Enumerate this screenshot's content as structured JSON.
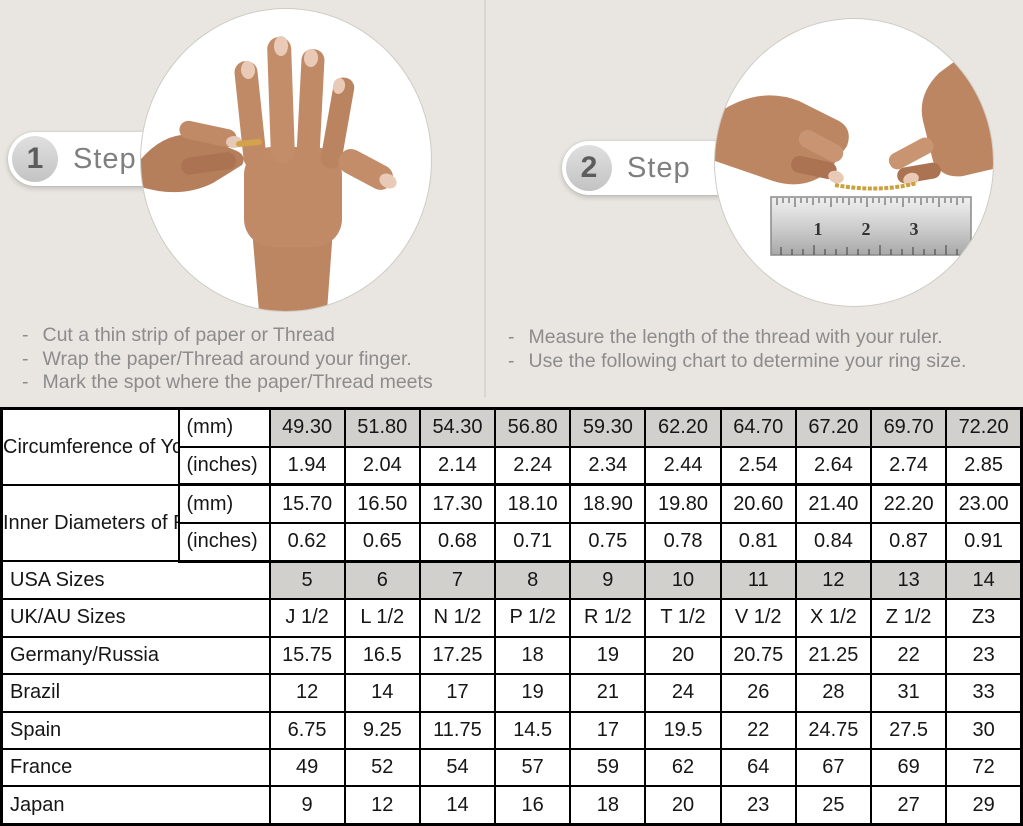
{
  "page": {
    "background": "#e9e6e1",
    "divider_color": "#d9d6d0"
  },
  "steps": [
    {
      "number": "1",
      "label": "Step",
      "image": "hand-with-thread-wrapped-around-ring-finger",
      "instructions": [
        "Cut a thin strip of paper or Thread",
        "Wrap the paper/Thread around your finger.",
        "Mark the spot where the paper/Thread meets"
      ]
    },
    {
      "number": "2",
      "label": "Step",
      "image": "hands-measuring-gold-thread-with-ruler",
      "instructions": [
        "Measure the length of the thread with your ruler.",
        "Use the following chart to determine your ring size."
      ]
    }
  ],
  "ruler_numbers": [
    "1",
    "2",
    "3"
  ],
  "size_chart": {
    "shaded_cell_color": "#d2d0cd",
    "measure_groups": [
      {
        "label": "Circumference of Your Finger",
        "rows": [
          {
            "unit": "(mm)",
            "shaded": true,
            "values": [
              "49.30",
              "51.80",
              "54.30",
              "56.80",
              "59.30",
              "62.20",
              "64.70",
              "67.20",
              "69.70",
              "72.20"
            ]
          },
          {
            "unit": "(inches)",
            "shaded": false,
            "values": [
              "1.94",
              "2.04",
              "2.14",
              "2.24",
              "2.34",
              "2.44",
              "2.54",
              "2.64",
              "2.74",
              "2.85"
            ]
          }
        ]
      },
      {
        "label": "Inner Diameters of Rings",
        "rows": [
          {
            "unit": "(mm)",
            "shaded": false,
            "values": [
              "15.70",
              "16.50",
              "17.30",
              "18.10",
              "18.90",
              "19.80",
              "20.60",
              "21.40",
              "22.20",
              "23.00"
            ]
          },
          {
            "unit": "(inches)",
            "shaded": false,
            "values": [
              "0.62",
              "0.65",
              "0.68",
              "0.71",
              "0.75",
              "0.78",
              "0.81",
              "0.84",
              "0.87",
              "0.91"
            ]
          }
        ]
      }
    ],
    "size_rows": [
      {
        "label": "USA Sizes",
        "shaded": true,
        "values": [
          "5",
          "6",
          "7",
          "8",
          "9",
          "10",
          "11",
          "12",
          "13",
          "14"
        ]
      },
      {
        "label": "UK/AU Sizes",
        "shaded": false,
        "values": [
          "J 1/2",
          "L 1/2",
          "N 1/2",
          "P 1/2",
          "R 1/2",
          "T 1/2",
          "V 1/2",
          "X 1/2",
          "Z 1/2",
          "Z3"
        ]
      },
      {
        "label": "Germany/Russia",
        "shaded": false,
        "values": [
          "15.75",
          "16.5",
          "17.25",
          "18",
          "19",
          "20",
          "20.75",
          "21.25",
          "22",
          "23"
        ]
      },
      {
        "label": "Brazil",
        "shaded": false,
        "values": [
          "12",
          "14",
          "17",
          "19",
          "21",
          "24",
          "26",
          "28",
          "31",
          "33"
        ]
      },
      {
        "label": "Spain",
        "shaded": false,
        "values": [
          "6.75",
          "9.25",
          "11.75",
          "14.5",
          "17",
          "19.5",
          "22",
          "24.75",
          "27.5",
          "30"
        ]
      },
      {
        "label": "France",
        "shaded": false,
        "values": [
          "49",
          "52",
          "54",
          "57",
          "59",
          "62",
          "64",
          "67",
          "69",
          "72"
        ]
      },
      {
        "label": "Japan",
        "shaded": false,
        "values": [
          "9",
          "12",
          "14",
          "16",
          "18",
          "20",
          "23",
          "25",
          "27",
          "29"
        ]
      }
    ]
  }
}
